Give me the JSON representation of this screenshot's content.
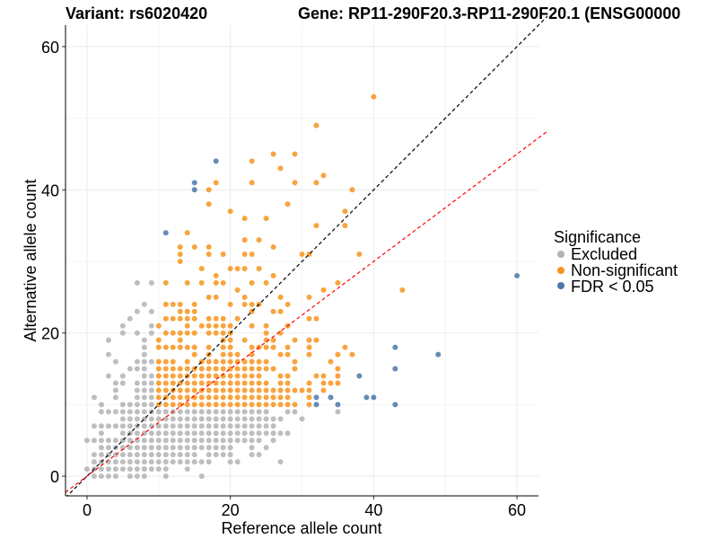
{
  "chart_data": {
    "type": "scatter",
    "title_left": "Variant: rs6020420",
    "title_right": "Gene: RP11-290F20.3-RP11-290F20.1 (ENSG00000",
    "xlabel": "Reference allele count",
    "ylabel": "Alternative allele count",
    "xlim": [
      -3,
      63
    ],
    "ylim": [
      -2.75,
      63
    ],
    "xticks": [
      0,
      20,
      40,
      60
    ],
    "yticks": [
      0,
      20,
      40,
      60
    ],
    "xtick_labels": [
      "0",
      "20",
      "40",
      "60"
    ],
    "ytick_labels": [
      "0",
      "20",
      "40",
      "60"
    ],
    "grid": true,
    "legend": {
      "title": "Significance",
      "position": "right",
      "entries": [
        {
          "key": "excluded",
          "label": "Excluded",
          "color": "#b3b3b3"
        },
        {
          "key": "nonsig",
          "label": "Non-significant",
          "color": "#f7941d"
        },
        {
          "key": "fdr",
          "label": "FDR < 0.05",
          "color": "#4a78a8"
        }
      ]
    },
    "reference_lines": [
      {
        "name": "identity",
        "slope": 1.0,
        "intercept": 0,
        "color": "#000000",
        "style": "dashed"
      },
      {
        "name": "expected-ratio",
        "slope": 0.75,
        "intercept": 0,
        "color": "#ff0000",
        "style": "dashed"
      }
    ],
    "series": [
      {
        "name": "Excluded",
        "color": "#b3b3b3",
        "rows": {
          "0": [
            1,
            2,
            3,
            4,
            6,
            7,
            8,
            11,
            16
          ],
          "1": [
            0,
            1,
            2,
            3,
            4,
            5,
            6,
            7,
            8,
            9,
            10,
            11,
            14
          ],
          "2": [
            1,
            2,
            3,
            4,
            5,
            6,
            7,
            8,
            9,
            10,
            11,
            12,
            13,
            14,
            15,
            16,
            17,
            20,
            21,
            27
          ],
          "3": [
            1,
            2,
            3,
            4,
            5,
            6,
            7,
            8,
            9,
            10,
            11,
            12,
            13,
            14,
            15,
            17,
            18,
            19,
            20,
            23,
            24
          ],
          "4": [
            2,
            3,
            4,
            5,
            6,
            7,
            8,
            9,
            10,
            11,
            12,
            13,
            14,
            15,
            16,
            17,
            18,
            19,
            20,
            23,
            25
          ],
          "5": [
            0,
            1,
            2,
            3,
            4,
            5,
            6,
            7,
            8,
            9,
            10,
            11,
            12,
            13,
            14,
            15,
            16,
            17,
            18,
            19,
            20,
            21,
            22,
            23,
            24,
            26
          ],
          "6": [
            2,
            5,
            6,
            7,
            8,
            9,
            10,
            11,
            12,
            13,
            14,
            15,
            16,
            17,
            18,
            19,
            20,
            21,
            22,
            23,
            24,
            25,
            26,
            27,
            28
          ],
          "7": [
            1,
            2,
            3,
            4,
            5,
            6,
            7,
            8,
            9,
            10,
            11,
            12,
            13,
            14,
            15,
            16,
            17,
            18,
            19,
            20,
            21,
            22,
            23,
            24,
            25,
            26
          ],
          "8": [
            5,
            6,
            7,
            8,
            9,
            10,
            11,
            12,
            13,
            14,
            15,
            16,
            17,
            18,
            19,
            20,
            21,
            22,
            23,
            24,
            25,
            26,
            27,
            30
          ],
          "9": [
            2,
            3,
            4,
            5,
            6,
            7,
            8,
            9,
            10,
            11,
            12,
            13,
            14,
            15,
            16,
            17,
            18,
            19,
            20,
            21,
            22,
            23,
            24,
            25,
            28,
            29,
            35
          ],
          "10": [
            2,
            5,
            6,
            7,
            8,
            9
          ],
          "11": [
            1,
            4,
            7,
            8,
            9
          ],
          "12": [
            4,
            7,
            8,
            9
          ],
          "13": [
            4,
            5,
            7,
            8,
            9
          ],
          "14": [
            3,
            5,
            8,
            9
          ],
          "15": [
            6,
            7,
            8
          ],
          "16": [
            4,
            7,
            8,
            9
          ],
          "17": [
            3,
            8
          ],
          "18": [
            8
          ],
          "19": [
            3,
            8
          ],
          "20": [
            5,
            7,
            9
          ],
          "21": [
            5,
            9
          ],
          "22": [
            6
          ],
          "23": [
            7,
            9
          ],
          "24": [
            8
          ],
          "27": [
            7,
            9
          ]
        }
      },
      {
        "name": "Non-significant",
        "color": "#f7941d",
        "rows": {
          "10": [
            10,
            11,
            12,
            13,
            14,
            15,
            16,
            17,
            18,
            19,
            20,
            21,
            22,
            23,
            24,
            25,
            26,
            27,
            28,
            29,
            31
          ],
          "11": [
            10,
            11,
            12,
            13,
            14,
            15,
            16,
            17,
            18,
            19,
            20,
            21,
            22,
            23,
            24,
            25,
            26,
            27,
            28,
            31
          ],
          "12": [
            10,
            11,
            12,
            13,
            14,
            15,
            16,
            17,
            18,
            19,
            20,
            21,
            22,
            23,
            24,
            25,
            26,
            27,
            28,
            29,
            30,
            31,
            33
          ],
          "13": [
            10,
            11,
            12,
            13,
            14,
            15,
            16,
            17,
            18,
            19,
            20,
            21,
            22,
            23,
            24,
            25,
            27,
            28,
            31,
            33,
            34,
            35
          ],
          "14": [
            10,
            11,
            12,
            13,
            14,
            15,
            16,
            17,
            18,
            19,
            20,
            21,
            22,
            23,
            24,
            27,
            28,
            32,
            33,
            35
          ],
          "15": [
            10,
            11,
            12,
            13,
            14,
            15,
            16,
            17,
            18,
            19,
            20,
            21,
            22,
            23,
            24,
            25,
            26,
            29,
            35
          ],
          "16": [
            10,
            11,
            12,
            14,
            16,
            17,
            18,
            19,
            20,
            21,
            22,
            23,
            24,
            25,
            29,
            34
          ],
          "17": [
            15,
            17,
            19,
            20,
            21,
            23,
            27,
            28,
            31,
            35,
            37
          ],
          "18": [
            10,
            11,
            12,
            13,
            14,
            15,
            17,
            19,
            20,
            23,
            24,
            25,
            26,
            28,
            31,
            36
          ],
          "19": [
            10,
            13,
            19,
            20,
            22,
            25,
            26,
            29,
            31,
            32
          ],
          "20": [
            11,
            12,
            13,
            14,
            15,
            17,
            18,
            19,
            20,
            25,
            27
          ],
          "21": [
            10,
            14,
            16,
            17,
            18,
            19,
            20,
            23,
            25,
            28
          ],
          "22": [
            11,
            12,
            13,
            14,
            15,
            17,
            18,
            19,
            21,
            31,
            32
          ],
          "23": [
            13,
            14,
            15,
            23,
            26,
            27
          ],
          "24": [
            11,
            12,
            13,
            15,
            20,
            22,
            23,
            24,
            28
          ],
          "25": [
            17,
            18,
            22,
            27,
            31
          ],
          "26": [
            21,
            33,
            44
          ],
          "27": [
            11,
            14,
            16,
            18,
            19,
            23,
            25,
            35
          ],
          "28": [
            18,
            26
          ],
          "29": [
            16,
            20,
            21,
            22,
            24
          ],
          "30": [
            13
          ],
          "31": [
            13,
            17,
            19,
            22,
            23,
            30,
            31,
            38
          ],
          "32": [
            13,
            15,
            17,
            26
          ],
          "33": [
            22,
            24
          ],
          "34": [
            14
          ],
          "35": [
            32,
            36
          ],
          "36": [
            22,
            25
          ],
          "37": [
            20,
            36
          ],
          "38": [
            17,
            28
          ],
          "40": [
            17,
            37
          ],
          "41": [
            18,
            23,
            29,
            32
          ],
          "42": [
            33
          ],
          "43": [
            27
          ],
          "44": [
            23
          ],
          "45": [
            26,
            29
          ],
          "49": [
            32
          ],
          "53": [
            40
          ]
        }
      },
      {
        "name": "FDR < 0.05",
        "color": "#4a78a8",
        "rows": {
          "10": [
            32,
            35,
            43
          ],
          "11": [
            32,
            34,
            39,
            40
          ],
          "14": [
            38
          ],
          "15": [
            43
          ],
          "17": [
            49
          ],
          "18": [
            43
          ],
          "28": [
            60
          ],
          "34": [
            11
          ],
          "40": [
            15
          ],
          "41": [
            15
          ],
          "44": [
            18
          ]
        }
      }
    ]
  }
}
